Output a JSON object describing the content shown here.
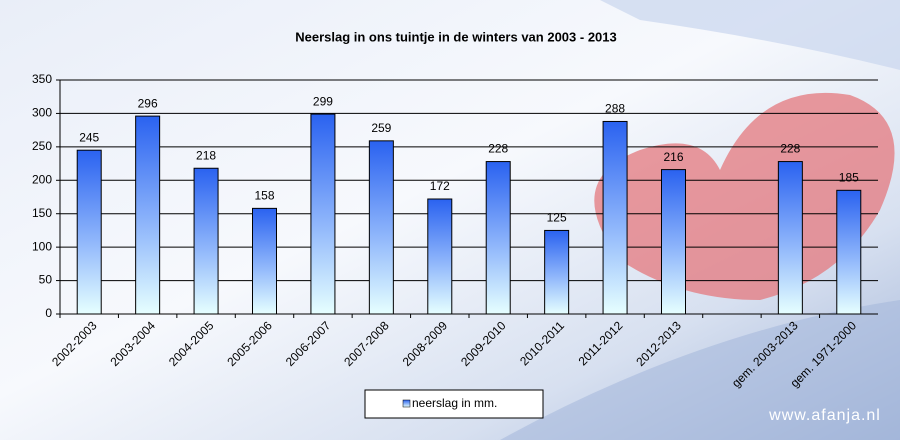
{
  "chart_data": {
    "type": "bar",
    "title": "Neerslag  in  ons  tuintje  in  de winters  van 2003  -  2013",
    "categories": [
      "2002-2003",
      "2003-2004",
      "2004-2005",
      "2005-2006",
      "2006-2007",
      "2007-2008",
      "2008-2009",
      "2009-2010",
      "2010-2011",
      "2011-2012",
      "2012-2013",
      null,
      "gem. 2003-2013",
      "gem. 1971-2000"
    ],
    "series": [
      {
        "name": "neerslag in mm.",
        "color": "#2a62f0",
        "values": [
          245,
          296,
          218,
          158,
          299,
          259,
          172,
          228,
          125,
          288,
          216,
          null,
          228,
          185
        ]
      }
    ],
    "ylim": [
      0,
      350
    ],
    "yticks": [
      0,
      50,
      100,
      150,
      200,
      250,
      300,
      350
    ],
    "grid": true,
    "legend": "bottom",
    "watermark": "www.afanja.nl"
  }
}
